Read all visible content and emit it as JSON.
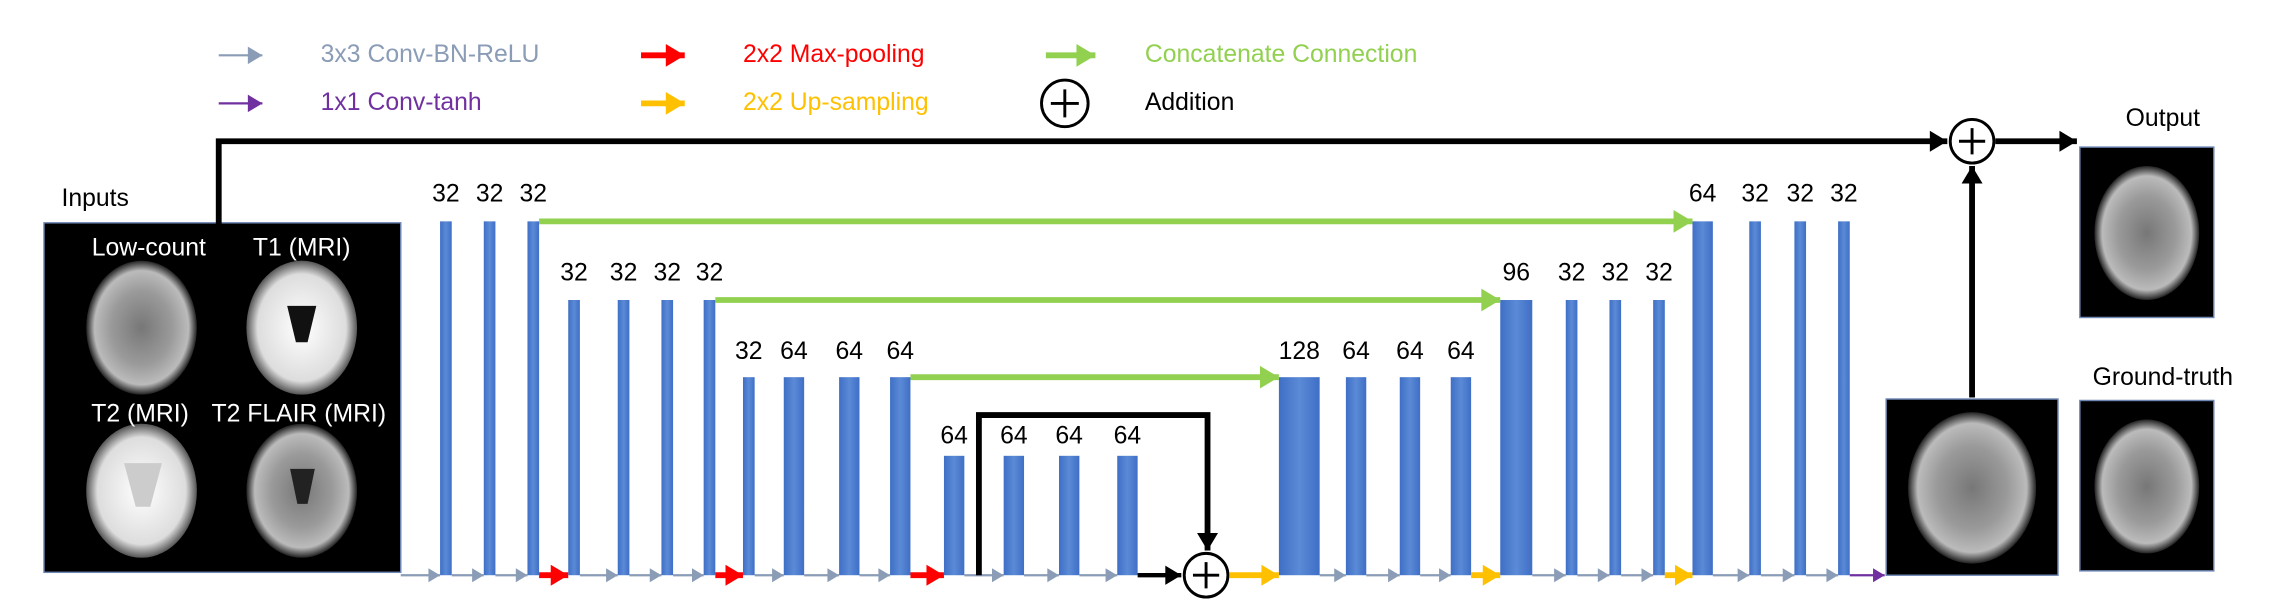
{
  "legend": [
    {
      "label": "3x3 Conv-BN-ReLU",
      "color": "#8a9cb6"
    },
    {
      "label": "2x2 Max-pooling",
      "color": "#ff0000"
    },
    {
      "label": "Concatenate Connection",
      "color": "#92d050"
    },
    {
      "label": "1x1 Conv-tanh",
      "color": "#7030a0"
    },
    {
      "label": "2x2 Up-sampling",
      "color": "#ffc000"
    },
    {
      "label": "Addition",
      "color": "#000000"
    }
  ],
  "inputs": {
    "title": "Inputs",
    "images": [
      "Low-count",
      "T1 (MRI)",
      "T2 (MRI)",
      "T2 FLAIR (MRI)"
    ]
  },
  "network": {
    "channels": [
      32,
      32,
      32,
      32,
      32,
      32,
      32,
      32,
      64,
      64,
      64,
      64,
      64,
      64,
      64,
      128,
      64,
      64,
      64,
      96,
      32,
      32,
      32,
      64,
      32,
      32,
      32
    ]
  },
  "outputs": {
    "output": "Output",
    "ground_truth": "Ground-truth"
  }
}
